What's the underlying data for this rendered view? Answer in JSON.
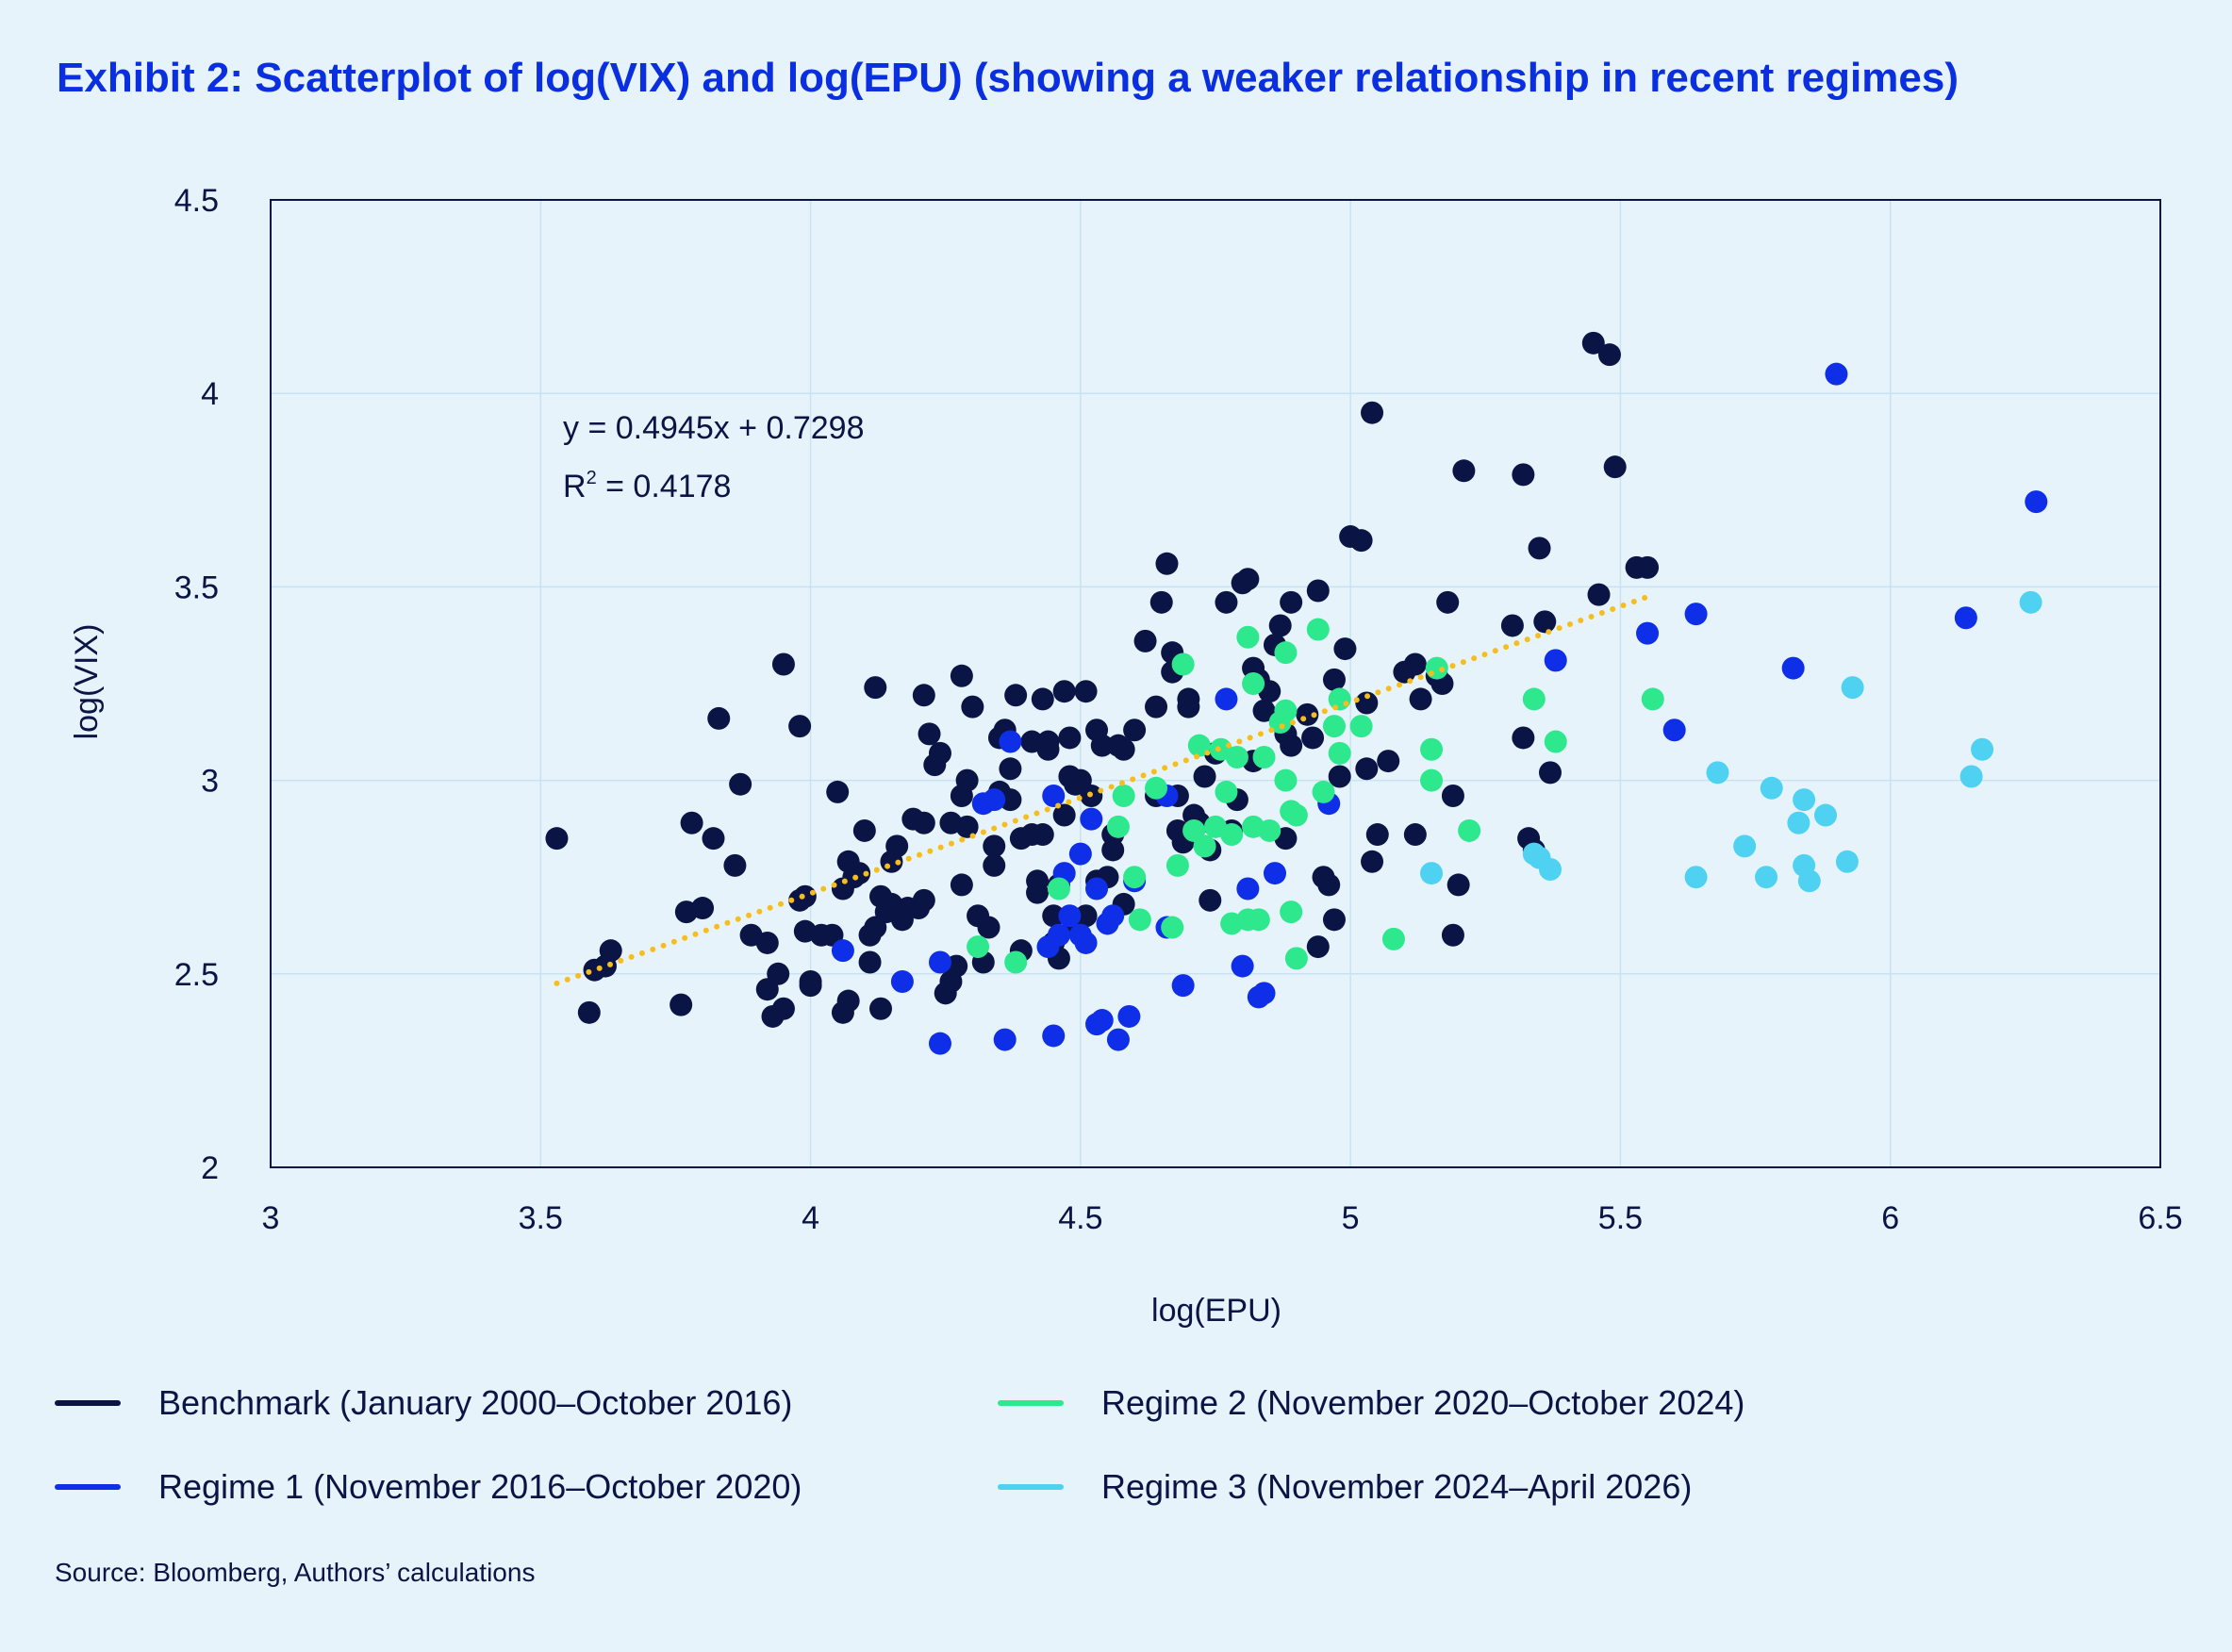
{
  "title": "Exhibit 2: Scatterplot of log(VIX) and log(EPU) (showing a weaker relationship in recent regimes)",
  "source": "Source: Bloomberg, Authors’ calculations",
  "colors": {
    "background": "#e6f3fb",
    "benchmark": "#0b1545",
    "regime1": "#0f2ee8",
    "regime2": "#2ee88e",
    "regime3": "#4fd2f2",
    "trendline": "#f5bd1f",
    "gridline": "#c9e1f1",
    "title": "#0a2fe0"
  },
  "chart_data": {
    "type": "scatter",
    "xlabel": "log(EPU)",
    "ylabel": "log(VIX)",
    "xlim": [
      3,
      6.5
    ],
    "ylim": [
      2,
      4.5
    ],
    "x_ticks": [
      "3",
      "3.5",
      "4",
      "4.5",
      "5",
      "5.5",
      "6",
      "6.5"
    ],
    "y_ticks": [
      "2",
      "2.5",
      "3",
      "3.5",
      "4",
      "4.5"
    ],
    "grid": true,
    "legend_position": "bottom",
    "trendline": {
      "equation": "y = 0.4945x + 0.7298",
      "r2_label": "R",
      "r2_sup": "2",
      "r2_value": " = 0.4178",
      "slope": 0.4945,
      "intercept": 0.7298,
      "x_range": [
        3.53,
        5.56
      ]
    },
    "series": [
      {
        "name": "Benchmark (January 2000–October 2016)",
        "color": "#0b1545",
        "points": [
          [
            3.53,
            2.85
          ],
          [
            3.59,
            2.4
          ],
          [
            3.6,
            2.51
          ],
          [
            3.63,
            2.56
          ],
          [
            3.62,
            2.52
          ],
          [
            3.76,
            2.42
          ],
          [
            3.77,
            2.66
          ],
          [
            3.78,
            2.89
          ],
          [
            3.8,
            2.67
          ],
          [
            3.82,
            2.85
          ],
          [
            3.83,
            3.16
          ],
          [
            3.86,
            2.78
          ],
          [
            3.87,
            2.99
          ],
          [
            3.89,
            2.6
          ],
          [
            3.92,
            2.58
          ],
          [
            3.92,
            2.46
          ],
          [
            3.93,
            2.39
          ],
          [
            3.94,
            2.5
          ],
          [
            3.95,
            2.41
          ],
          [
            3.95,
            3.3
          ],
          [
            3.98,
            2.69
          ],
          [
            3.98,
            3.14
          ],
          [
            3.99,
            2.7
          ],
          [
            3.99,
            2.61
          ],
          [
            4.0,
            2.48
          ],
          [
            4.0,
            2.47
          ],
          [
            4.02,
            2.6
          ],
          [
            4.04,
            2.6
          ],
          [
            4.05,
            2.97
          ],
          [
            4.06,
            2.4
          ],
          [
            4.06,
            2.72
          ],
          [
            4.07,
            2.79
          ],
          [
            4.07,
            2.43
          ],
          [
            4.08,
            2.75
          ],
          [
            4.09,
            2.76
          ],
          [
            4.1,
            2.87
          ],
          [
            4.11,
            2.53
          ],
          [
            4.11,
            2.6
          ],
          [
            4.12,
            2.62
          ],
          [
            4.12,
            3.24
          ],
          [
            4.13,
            2.41
          ],
          [
            4.13,
            2.7
          ],
          [
            4.14,
            2.66
          ],
          [
            4.15,
            2.79
          ],
          [
            4.15,
            2.68
          ],
          [
            4.16,
            2.83
          ],
          [
            4.17,
            2.64
          ],
          [
            4.18,
            2.67
          ],
          [
            4.19,
            2.9
          ],
          [
            4.2,
            2.67
          ],
          [
            4.21,
            2.89
          ],
          [
            4.21,
            2.69
          ],
          [
            4.21,
            3.22
          ],
          [
            4.22,
            3.12
          ],
          [
            4.23,
            3.04
          ],
          [
            4.24,
            3.07
          ],
          [
            4.25,
            2.45
          ],
          [
            4.26,
            2.48
          ],
          [
            4.26,
            2.89
          ],
          [
            4.27,
            2.52
          ],
          [
            4.28,
            2.96
          ],
          [
            4.28,
            2.73
          ],
          [
            4.28,
            3.27
          ],
          [
            4.29,
            3.0
          ],
          [
            4.29,
            2.88
          ],
          [
            4.3,
            3.19
          ],
          [
            4.31,
            2.65
          ],
          [
            4.32,
            2.53
          ],
          [
            4.33,
            2.62
          ],
          [
            4.34,
            2.78
          ],
          [
            4.34,
            2.83
          ],
          [
            4.35,
            2.97
          ],
          [
            4.35,
            3.11
          ],
          [
            4.36,
            3.13
          ],
          [
            4.36,
            3.12
          ],
          [
            4.37,
            2.95
          ],
          [
            4.37,
            3.03
          ],
          [
            4.38,
            3.22
          ],
          [
            4.39,
            2.56
          ],
          [
            4.39,
            2.85
          ],
          [
            4.41,
            3.1
          ],
          [
            4.41,
            2.86
          ],
          [
            4.42,
            2.74
          ],
          [
            4.42,
            2.71
          ],
          [
            4.43,
            3.21
          ],
          [
            4.43,
            2.86
          ],
          [
            4.44,
            3.08
          ],
          [
            4.44,
            3.1
          ],
          [
            4.45,
            2.58
          ],
          [
            4.45,
            2.65
          ],
          [
            4.46,
            2.73
          ],
          [
            4.46,
            2.54
          ],
          [
            4.47,
            2.91
          ],
          [
            4.47,
            3.23
          ],
          [
            4.48,
            3.11
          ],
          [
            4.48,
            3.01
          ],
          [
            4.49,
            2.62
          ],
          [
            4.49,
            2.99
          ],
          [
            4.5,
            3.0
          ],
          [
            4.51,
            2.65
          ],
          [
            4.51,
            3.23
          ],
          [
            4.52,
            2.96
          ],
          [
            4.53,
            3.13
          ],
          [
            4.53,
            2.74
          ],
          [
            4.54,
            3.09
          ],
          [
            4.55,
            2.75
          ],
          [
            4.56,
            2.86
          ],
          [
            4.56,
            2.82
          ],
          [
            4.57,
            3.09
          ],
          [
            4.58,
            2.68
          ],
          [
            4.58,
            3.08
          ],
          [
            4.6,
            3.13
          ],
          [
            4.62,
            3.36
          ],
          [
            4.64,
            3.19
          ],
          [
            4.64,
            2.96
          ],
          [
            4.65,
            3.46
          ],
          [
            4.66,
            3.56
          ],
          [
            4.67,
            3.28
          ],
          [
            4.67,
            3.33
          ],
          [
            4.68,
            2.87
          ],
          [
            4.68,
            2.96
          ],
          [
            4.69,
            2.84
          ],
          [
            4.7,
            3.21
          ],
          [
            4.7,
            3.19
          ],
          [
            4.71,
            2.91
          ],
          [
            4.72,
            2.89
          ],
          [
            4.73,
            3.01
          ],
          [
            4.74,
            2.82
          ],
          [
            4.74,
            2.69
          ],
          [
            4.75,
            3.07
          ],
          [
            4.77,
            3.46
          ],
          [
            4.78,
            2.87
          ],
          [
            4.79,
            2.95
          ],
          [
            4.8,
            3.51
          ],
          [
            4.81,
            3.52
          ],
          [
            4.82,
            3.05
          ],
          [
            4.82,
            3.29
          ],
          [
            4.83,
            3.26
          ],
          [
            4.84,
            3.18
          ],
          [
            4.85,
            3.23
          ],
          [
            4.86,
            3.35
          ],
          [
            4.87,
            3.4
          ],
          [
            4.88,
            3.12
          ],
          [
            4.88,
            2.85
          ],
          [
            4.89,
            3.09
          ],
          [
            4.89,
            3.46
          ],
          [
            4.92,
            3.17
          ],
          [
            4.93,
            3.11
          ],
          [
            4.94,
            2.57
          ],
          [
            4.94,
            3.49
          ],
          [
            4.95,
            2.75
          ],
          [
            4.96,
            2.73
          ],
          [
            4.97,
            3.26
          ],
          [
            4.97,
            2.64
          ],
          [
            4.98,
            3.01
          ],
          [
            4.99,
            3.34
          ],
          [
            5.0,
            3.63
          ],
          [
            5.02,
            3.62
          ],
          [
            5.03,
            3.2
          ],
          [
            5.03,
            3.03
          ],
          [
            5.04,
            2.79
          ],
          [
            5.04,
            3.95
          ],
          [
            5.05,
            2.86
          ],
          [
            5.07,
            3.05
          ],
          [
            5.1,
            3.28
          ],
          [
            5.12,
            3.3
          ],
          [
            5.12,
            2.86
          ],
          [
            5.13,
            3.21
          ],
          [
            5.16,
            3.27
          ],
          [
            5.17,
            3.25
          ],
          [
            5.18,
            3.46
          ],
          [
            5.19,
            2.6
          ],
          [
            5.19,
            2.96
          ],
          [
            5.2,
            2.73
          ],
          [
            5.21,
            3.8
          ],
          [
            5.3,
            3.4
          ],
          [
            5.32,
            3.79
          ],
          [
            5.32,
            3.11
          ],
          [
            5.33,
            2.85
          ],
          [
            5.34,
            2.82
          ],
          [
            5.35,
            3.6
          ],
          [
            5.36,
            3.41
          ],
          [
            5.37,
            3.02
          ],
          [
            5.45,
            4.13
          ],
          [
            5.46,
            3.48
          ],
          [
            5.48,
            4.1
          ],
          [
            5.49,
            3.81
          ],
          [
            5.53,
            3.55
          ],
          [
            5.55,
            3.55
          ]
        ]
      },
      {
        "name": "Regime 1 (November 2016–October 2020)",
        "color": "#0f2ee8",
        "points": [
          [
            4.06,
            2.56
          ],
          [
            4.17,
            2.48
          ],
          [
            4.24,
            2.32
          ],
          [
            4.24,
            2.53
          ],
          [
            4.32,
            2.94
          ],
          [
            4.34,
            2.95
          ],
          [
            4.36,
            2.33
          ],
          [
            4.37,
            3.1
          ],
          [
            4.44,
            2.57
          ],
          [
            4.45,
            2.34
          ],
          [
            4.45,
            2.96
          ],
          [
            4.46,
            2.6
          ],
          [
            4.47,
            2.76
          ],
          [
            4.48,
            2.65
          ],
          [
            4.5,
            2.6
          ],
          [
            4.5,
            2.81
          ],
          [
            4.51,
            2.58
          ],
          [
            4.52,
            2.9
          ],
          [
            4.53,
            2.72
          ],
          [
            4.53,
            2.37
          ],
          [
            4.54,
            2.38
          ],
          [
            4.55,
            2.63
          ],
          [
            4.56,
            2.65
          ],
          [
            4.57,
            2.33
          ],
          [
            4.59,
            2.39
          ],
          [
            4.6,
            2.74
          ],
          [
            4.66,
            2.96
          ],
          [
            4.66,
            2.62
          ],
          [
            4.69,
            2.47
          ],
          [
            4.77,
            3.21
          ],
          [
            4.8,
            2.52
          ],
          [
            4.81,
            2.72
          ],
          [
            4.83,
            2.44
          ],
          [
            4.84,
            2.45
          ],
          [
            4.86,
            2.76
          ],
          [
            4.96,
            2.94
          ],
          [
            5.38,
            3.31
          ],
          [
            5.55,
            3.38
          ],
          [
            5.6,
            3.13
          ],
          [
            5.64,
            3.43
          ],
          [
            5.82,
            3.29
          ],
          [
            5.9,
            4.05
          ],
          [
            6.14,
            3.42
          ],
          [
            6.27,
            3.72
          ]
        ]
      },
      {
        "name": "Regime 2 (November 2020–October 2024)",
        "color": "#2ee88e",
        "points": [
          [
            4.31,
            2.57
          ],
          [
            4.38,
            2.53
          ],
          [
            4.46,
            2.72
          ],
          [
            4.57,
            2.88
          ],
          [
            4.58,
            2.96
          ],
          [
            4.6,
            2.75
          ],
          [
            4.61,
            2.64
          ],
          [
            4.64,
            2.98
          ],
          [
            4.67,
            2.62
          ],
          [
            4.68,
            2.78
          ],
          [
            4.69,
            3.3
          ],
          [
            4.71,
            2.87
          ],
          [
            4.72,
            3.09
          ],
          [
            4.73,
            2.83
          ],
          [
            4.75,
            2.88
          ],
          [
            4.76,
            3.08
          ],
          [
            4.77,
            2.97
          ],
          [
            4.78,
            2.63
          ],
          [
            4.78,
            2.86
          ],
          [
            4.79,
            3.06
          ],
          [
            4.81,
            2.64
          ],
          [
            4.81,
            3.37
          ],
          [
            4.82,
            2.88
          ],
          [
            4.82,
            3.25
          ],
          [
            4.83,
            2.64
          ],
          [
            4.84,
            3.06
          ],
          [
            4.85,
            2.87
          ],
          [
            4.87,
            3.15
          ],
          [
            4.88,
            3.18
          ],
          [
            4.88,
            3.0
          ],
          [
            4.88,
            3.33
          ],
          [
            4.89,
            2.66
          ],
          [
            4.89,
            2.92
          ],
          [
            4.9,
            2.91
          ],
          [
            4.9,
            2.54
          ],
          [
            4.94,
            3.39
          ],
          [
            4.95,
            2.97
          ],
          [
            4.97,
            3.14
          ],
          [
            4.98,
            3.07
          ],
          [
            4.98,
            3.21
          ],
          [
            5.02,
            3.14
          ],
          [
            5.08,
            2.59
          ],
          [
            5.15,
            3.08
          ],
          [
            5.15,
            3.0
          ],
          [
            5.16,
            3.29
          ],
          [
            5.22,
            2.87
          ],
          [
            5.34,
            3.21
          ],
          [
            5.38,
            3.1
          ],
          [
            5.56,
            3.21
          ]
        ]
      },
      {
        "name": "Regime 3 (November 2024–April 2026)",
        "color": "#4fd2f2",
        "points": [
          [
            5.15,
            2.76
          ],
          [
            5.34,
            2.81
          ],
          [
            5.35,
            2.8
          ],
          [
            5.37,
            2.77
          ],
          [
            5.64,
            2.75
          ],
          [
            5.68,
            3.02
          ],
          [
            5.73,
            2.83
          ],
          [
            5.77,
            2.75
          ],
          [
            5.78,
            2.98
          ],
          [
            5.83,
            2.89
          ],
          [
            5.84,
            2.95
          ],
          [
            5.84,
            2.78
          ],
          [
            5.85,
            2.74
          ],
          [
            5.88,
            2.91
          ],
          [
            5.92,
            2.79
          ],
          [
            5.93,
            3.24
          ],
          [
            6.15,
            3.01
          ],
          [
            6.17,
            3.08
          ],
          [
            6.26,
            3.46
          ]
        ]
      }
    ]
  }
}
